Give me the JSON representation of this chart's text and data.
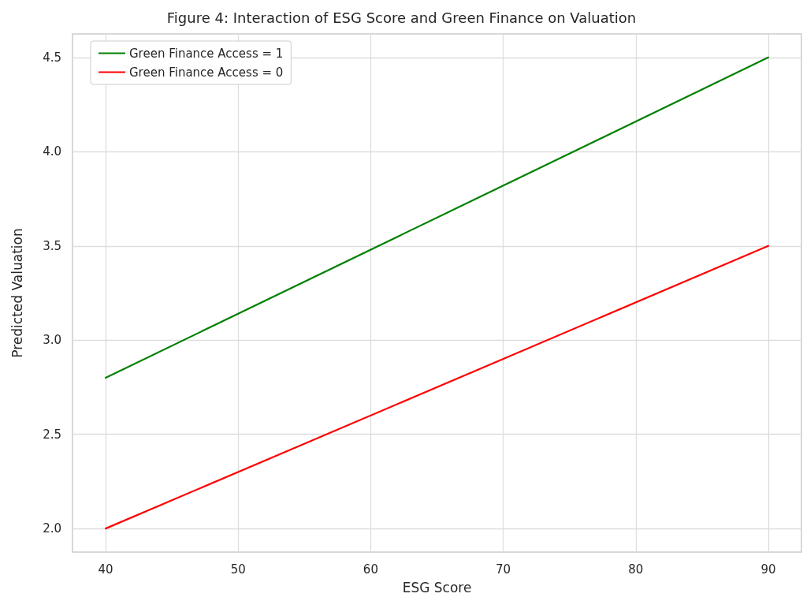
{
  "chart_data": {
    "type": "line",
    "title": "Figure 4: Interaction of ESG Score and Green Finance on Valuation",
    "xlabel": "ESG Score",
    "ylabel": "Predicted Valuation",
    "x": [
      40,
      90
    ],
    "series": [
      {
        "name": "Green Finance Access = 1",
        "color": "#008000",
        "values": [
          2.8,
          4.5
        ]
      },
      {
        "name": "Green Finance Access = 0",
        "color": "#ff0000",
        "values": [
          2.0,
          3.5
        ]
      }
    ],
    "xlim": [
      37.5,
      92.5
    ],
    "xticks": [
      40,
      50,
      60,
      70,
      80,
      90
    ],
    "ylim": [
      1.875,
      4.625
    ],
    "yticks": [
      {
        "value": 2,
        "label": "2.0"
      },
      2.5,
      {
        "value": 3,
        "label": "3.0"
      },
      3.5,
      {
        "value": 4,
        "label": "4.0"
      },
      4.5
    ],
    "grid": true,
    "legend": "top left",
    "marker": "none",
    "line_style": "solid"
  }
}
